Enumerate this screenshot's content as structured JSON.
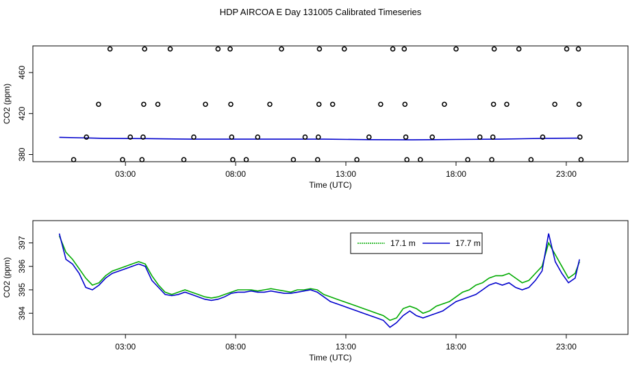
{
  "page": {
    "title": "HDP AIRCOA E  Day 131005  Calibrated Timeseries"
  },
  "chart_data": [
    {
      "type": "scatter+line",
      "xlabel": "Time (UTC)",
      "ylabel": "CO2 (ppm)",
      "x_ticks": [
        3,
        8,
        13,
        18,
        23
      ],
      "x_tick_labels": [
        "03:00",
        "08:00",
        "13:00",
        "18:00",
        "23:00"
      ],
      "xlim": [
        -1.2,
        25.8
      ],
      "y_ticks": [
        380,
        420,
        460
      ],
      "y_tick_labels": [
        "380",
        "420",
        "460"
      ],
      "ylim": [
        373,
        486
      ],
      "legend": "none",
      "colors": {
        "line": "#0000cc",
        "line2": "#00aa00",
        "points": "#000000"
      },
      "points": [
        {
          "x": 0.65,
          "y": 375
        },
        {
          "x": 1.23,
          "y": 397
        },
        {
          "x": 1.78,
          "y": 429
        },
        {
          "x": 2.3,
          "y": 483
        },
        {
          "x": 2.87,
          "y": 375
        },
        {
          "x": 3.22,
          "y": 397
        },
        {
          "x": 3.75,
          "y": 375
        },
        {
          "x": 3.8,
          "y": 397
        },
        {
          "x": 3.83,
          "y": 429
        },
        {
          "x": 3.87,
          "y": 483
        },
        {
          "x": 4.47,
          "y": 429
        },
        {
          "x": 5.03,
          "y": 483
        },
        {
          "x": 5.65,
          "y": 375
        },
        {
          "x": 6.1,
          "y": 397
        },
        {
          "x": 6.63,
          "y": 429
        },
        {
          "x": 7.2,
          "y": 483
        },
        {
          "x": 7.75,
          "y": 483
        },
        {
          "x": 7.78,
          "y": 429
        },
        {
          "x": 7.82,
          "y": 397
        },
        {
          "x": 7.87,
          "y": 375
        },
        {
          "x": 8.48,
          "y": 375
        },
        {
          "x": 9.0,
          "y": 397
        },
        {
          "x": 9.55,
          "y": 429
        },
        {
          "x": 10.08,
          "y": 483
        },
        {
          "x": 10.62,
          "y": 375
        },
        {
          "x": 11.15,
          "y": 397
        },
        {
          "x": 11.72,
          "y": 375
        },
        {
          "x": 11.75,
          "y": 397
        },
        {
          "x": 11.78,
          "y": 429
        },
        {
          "x": 11.8,
          "y": 483
        },
        {
          "x": 12.4,
          "y": 429
        },
        {
          "x": 12.93,
          "y": 483
        },
        {
          "x": 13.5,
          "y": 375
        },
        {
          "x": 14.05,
          "y": 397
        },
        {
          "x": 14.58,
          "y": 429
        },
        {
          "x": 15.13,
          "y": 483
        },
        {
          "x": 15.65,
          "y": 483
        },
        {
          "x": 15.68,
          "y": 429
        },
        {
          "x": 15.72,
          "y": 397
        },
        {
          "x": 15.77,
          "y": 375
        },
        {
          "x": 16.38,
          "y": 375
        },
        {
          "x": 16.92,
          "y": 397
        },
        {
          "x": 17.47,
          "y": 429
        },
        {
          "x": 18.0,
          "y": 483
        },
        {
          "x": 18.53,
          "y": 375
        },
        {
          "x": 19.08,
          "y": 397
        },
        {
          "x": 19.62,
          "y": 375
        },
        {
          "x": 19.67,
          "y": 397
        },
        {
          "x": 19.7,
          "y": 429
        },
        {
          "x": 19.73,
          "y": 483
        },
        {
          "x": 20.3,
          "y": 429
        },
        {
          "x": 20.85,
          "y": 483
        },
        {
          "x": 21.4,
          "y": 375
        },
        {
          "x": 21.93,
          "y": 397
        },
        {
          "x": 22.48,
          "y": 429
        },
        {
          "x": 23.02,
          "y": 483
        },
        {
          "x": 23.55,
          "y": 483
        },
        {
          "x": 23.58,
          "y": 429
        },
        {
          "x": 23.62,
          "y": 397
        },
        {
          "x": 23.67,
          "y": 375
        }
      ],
      "series": [
        {
          "x": [
            0.0,
            2.0,
            4.0,
            6.0,
            8.0,
            10.0,
            12.0,
            14.0,
            16.0,
            18.0,
            20.0,
            22.0,
            23.6
          ],
          "values": [
            396.8,
            395.8,
            395.5,
            395.0,
            395.0,
            395.0,
            395.0,
            394.5,
            394.3,
            394.7,
            395.0,
            395.8,
            396.0
          ]
        }
      ]
    },
    {
      "type": "line",
      "xlabel": "Time (UTC)",
      "ylabel": "CO2 (ppm)",
      "x_ticks": [
        3,
        8,
        13,
        18,
        23
      ],
      "x_tick_labels": [
        "03:00",
        "08:00",
        "13:00",
        "18:00",
        "23:00"
      ],
      "xlim": [
        -1.2,
        25.8
      ],
      "y_ticks": [
        394,
        395,
        396,
        397
      ],
      "y_tick_labels": [
        "394",
        "395",
        "396",
        "397"
      ],
      "ylim": [
        393.1,
        397.95
      ],
      "legend": "top-right",
      "series": [
        {
          "name": "17.1 m",
          "color": "#00aa00",
          "x": [
            0.0,
            0.3,
            0.6,
            0.9,
            1.2,
            1.5,
            1.8,
            2.1,
            2.4,
            2.7,
            3.0,
            3.3,
            3.6,
            3.9,
            4.2,
            4.5,
            4.8,
            5.1,
            5.4,
            5.7,
            6.0,
            6.3,
            6.6,
            6.9,
            7.2,
            7.5,
            7.8,
            8.1,
            8.4,
            8.7,
            9.0,
            9.3,
            9.6,
            9.9,
            10.2,
            10.5,
            10.8,
            11.1,
            11.4,
            11.7,
            12.0,
            12.3,
            12.6,
            12.9,
            13.2,
            13.5,
            13.8,
            14.1,
            14.4,
            14.7,
            15.0,
            15.3,
            15.6,
            15.9,
            16.2,
            16.5,
            16.8,
            17.1,
            17.4,
            17.7,
            18.0,
            18.3,
            18.6,
            18.9,
            19.2,
            19.5,
            19.8,
            20.1,
            20.4,
            20.7,
            21.0,
            21.3,
            21.6,
            21.9,
            22.2,
            22.5,
            22.8,
            23.1,
            23.4,
            23.6
          ],
          "values": [
            397.3,
            396.6,
            396.3,
            395.9,
            395.5,
            395.2,
            395.3,
            395.6,
            395.8,
            395.9,
            396.0,
            396.1,
            396.2,
            396.1,
            395.6,
            395.2,
            394.9,
            394.8,
            394.9,
            395.0,
            394.9,
            394.8,
            394.7,
            394.65,
            394.7,
            394.8,
            394.9,
            395.0,
            395.0,
            395.0,
            394.95,
            395.0,
            395.05,
            395.0,
            394.95,
            394.9,
            395.0,
            395.0,
            395.05,
            395.0,
            394.8,
            394.7,
            394.6,
            394.5,
            394.4,
            394.3,
            394.2,
            394.1,
            394.0,
            393.9,
            393.7,
            393.8,
            394.2,
            394.3,
            394.2,
            394.0,
            394.1,
            394.3,
            394.4,
            394.5,
            394.7,
            394.9,
            395.0,
            395.2,
            395.3,
            395.5,
            395.6,
            395.6,
            395.7,
            395.5,
            395.3,
            395.4,
            395.7,
            396.0,
            397.0,
            396.5,
            396.0,
            395.5,
            395.7,
            396.2
          ]
        },
        {
          "name": "17.7 m",
          "color": "#0000cc",
          "x": [
            0.0,
            0.3,
            0.6,
            0.9,
            1.2,
            1.5,
            1.8,
            2.1,
            2.4,
            2.7,
            3.0,
            3.3,
            3.6,
            3.9,
            4.2,
            4.5,
            4.8,
            5.1,
            5.4,
            5.7,
            6.0,
            6.3,
            6.6,
            6.9,
            7.2,
            7.5,
            7.8,
            8.1,
            8.4,
            8.7,
            9.0,
            9.3,
            9.6,
            9.9,
            10.2,
            10.5,
            10.8,
            11.1,
            11.4,
            11.7,
            12.0,
            12.3,
            12.6,
            12.9,
            13.2,
            13.5,
            13.8,
            14.1,
            14.4,
            14.7,
            15.0,
            15.3,
            15.6,
            15.9,
            16.2,
            16.5,
            16.8,
            17.1,
            17.4,
            17.7,
            18.0,
            18.3,
            18.6,
            18.9,
            19.2,
            19.5,
            19.8,
            20.1,
            20.4,
            20.7,
            21.0,
            21.3,
            21.6,
            21.9,
            22.2,
            22.5,
            22.8,
            23.1,
            23.4,
            23.6
          ],
          "values": [
            397.4,
            396.3,
            396.1,
            395.7,
            395.1,
            395.0,
            395.2,
            395.5,
            395.7,
            395.8,
            395.9,
            396.0,
            396.1,
            396.0,
            395.4,
            395.1,
            394.8,
            394.75,
            394.8,
            394.9,
            394.8,
            394.7,
            394.6,
            394.55,
            394.6,
            394.7,
            394.85,
            394.9,
            394.9,
            394.95,
            394.9,
            394.9,
            394.95,
            394.9,
            394.85,
            394.85,
            394.9,
            394.95,
            395.0,
            394.9,
            394.7,
            394.5,
            394.4,
            394.3,
            394.2,
            394.1,
            394.0,
            393.9,
            393.8,
            393.7,
            393.4,
            393.6,
            393.9,
            394.1,
            393.9,
            393.8,
            393.9,
            394.0,
            394.1,
            394.3,
            394.5,
            394.6,
            394.7,
            394.8,
            395.0,
            395.2,
            395.3,
            395.2,
            395.3,
            395.1,
            395.0,
            395.1,
            395.4,
            395.8,
            397.4,
            396.2,
            395.7,
            395.3,
            395.5,
            396.3
          ]
        }
      ]
    }
  ]
}
